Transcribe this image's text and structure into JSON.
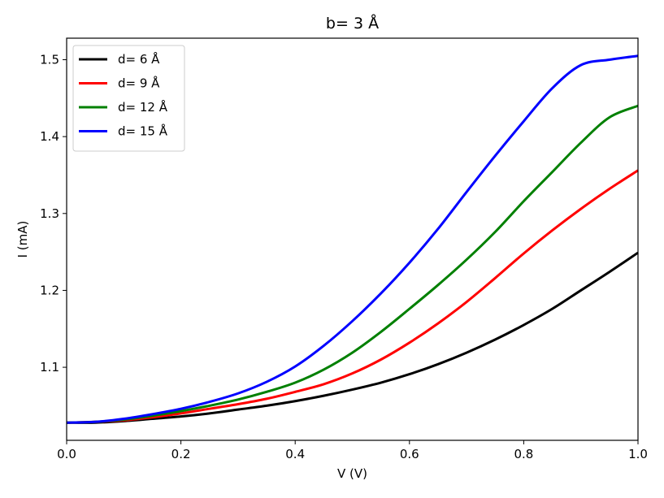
{
  "chart_data": {
    "type": "line",
    "title": "b= 3 Å",
    "xlabel": "V (V)",
    "ylabel": "I (mA)",
    "xlim": [
      0.0,
      1.0
    ],
    "ylim": [
      1.005,
      1.528
    ],
    "xticks": [
      0.0,
      0.2,
      0.4,
      0.6,
      0.8,
      1.0
    ],
    "xtick_labels": [
      "0.0",
      "0.2",
      "0.4",
      "0.6",
      "0.8",
      "1.0"
    ],
    "yticks": [
      1.1,
      1.2,
      1.3,
      1.4,
      1.5
    ],
    "ytick_labels": [
      "1.1",
      "1.2",
      "1.3",
      "1.4",
      "1.5"
    ],
    "grid": false,
    "legend_position": "top-left",
    "x": [
      0.0,
      0.05,
      0.1,
      0.15,
      0.2,
      0.25,
      0.3,
      0.35,
      0.4,
      0.45,
      0.5,
      0.55,
      0.6,
      0.65,
      0.7,
      0.75,
      0.8,
      0.85,
      0.9,
      0.95,
      1.0
    ],
    "series": [
      {
        "name": "d= 6 Å",
        "color": "#000000",
        "values": [
          1.028,
          1.028,
          1.03,
          1.033,
          1.036,
          1.04,
          1.045,
          1.05,
          1.056,
          1.063,
          1.071,
          1.08,
          1.091,
          1.104,
          1.119,
          1.136,
          1.155,
          1.176,
          1.2,
          1.224,
          1.249
        ]
      },
      {
        "name": "d= 9 Å",
        "color": "#ff0000",
        "values": [
          1.028,
          1.029,
          1.031,
          1.035,
          1.04,
          1.046,
          1.052,
          1.059,
          1.068,
          1.078,
          1.092,
          1.11,
          1.132,
          1.157,
          1.185,
          1.216,
          1.248,
          1.278,
          1.306,
          1.332,
          1.356
        ]
      },
      {
        "name": "d= 12 Å",
        "color": "#008000",
        "values": [
          1.028,
          1.029,
          1.032,
          1.037,
          1.043,
          1.05,
          1.058,
          1.068,
          1.08,
          1.097,
          1.119,
          1.146,
          1.176,
          1.207,
          1.24,
          1.276,
          1.316,
          1.354,
          1.392,
          1.425,
          1.44
        ]
      },
      {
        "name": "d= 15 Å",
        "color": "#0000ff",
        "values": [
          1.028,
          1.029,
          1.033,
          1.039,
          1.046,
          1.055,
          1.066,
          1.081,
          1.101,
          1.128,
          1.16,
          1.196,
          1.236,
          1.28,
          1.328,
          1.375,
          1.42,
          1.463,
          1.493,
          1.5,
          1.505
        ]
      }
    ]
  }
}
